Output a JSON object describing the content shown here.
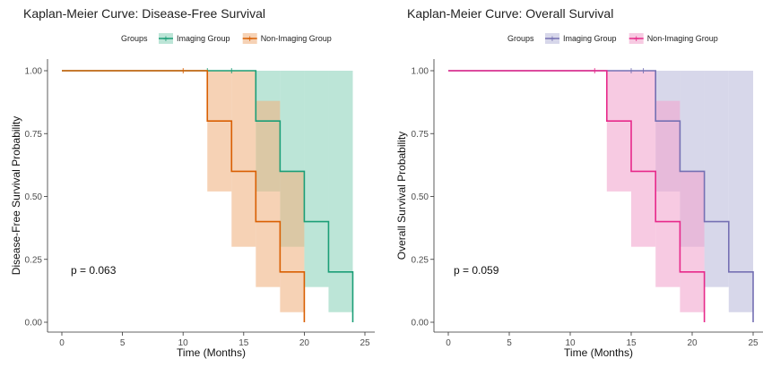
{
  "chart_data": [
    {
      "type": "line",
      "subtype": "kaplan-meier step",
      "title": "Kaplan-Meier Curve: Disease-Free Survival",
      "xlabel": "Time (Months)",
      "ylabel": "Disease-Free Survival Probability",
      "xlim": [
        0,
        25
      ],
      "ylim": [
        0,
        1
      ],
      "xticks": [
        0,
        5,
        10,
        15,
        20,
        25
      ],
      "yticks": [
        "0.00",
        "0.25",
        "0.50",
        "0.75",
        "1.00"
      ],
      "grid": false,
      "legend_title": "Groups",
      "legend_position": "top",
      "annotation": "p = 0.063",
      "series": [
        {
          "name": "Imaging Group",
          "color": "#1b9e77",
          "fill": "#8fd3bc",
          "steps": [
            [
              0,
              1.0
            ],
            [
              16,
              0.8
            ],
            [
              18,
              0.6
            ],
            [
              20,
              0.4
            ],
            [
              22,
              0.2
            ],
            [
              24,
              0.0
            ]
          ],
          "end": 24,
          "ci": [
            [
              0,
              1.0,
              1.0
            ],
            [
              16,
              1.0,
              0.52
            ],
            [
              18,
              1.0,
              0.3
            ],
            [
              20,
              1.0,
              0.14
            ],
            [
              22,
              1.0,
              0.04
            ]
          ],
          "censor": [
            12,
            14
          ]
        },
        {
          "name": "Non-Imaging Group",
          "color": "#d95f02",
          "fill": "#f0b483",
          "steps": [
            [
              0,
              1.0
            ],
            [
              12,
              0.8
            ],
            [
              14,
              0.6
            ],
            [
              16,
              0.4
            ],
            [
              18,
              0.2
            ],
            [
              20,
              0.0
            ]
          ],
          "end": 20,
          "ci": [
            [
              0,
              1.0,
              1.0
            ],
            [
              12,
              1.0,
              0.52
            ],
            [
              14,
              1.0,
              0.3
            ],
            [
              16,
              0.88,
              0.14
            ],
            [
              18,
              0.6,
              0.04
            ]
          ],
          "censor": [
            10
          ]
        }
      ]
    },
    {
      "type": "line",
      "subtype": "kaplan-meier step",
      "title": "Kaplan-Meier Curve: Overall Survival",
      "xlabel": "Time (Months)",
      "ylabel": "Overall Survival Probability",
      "xlim": [
        0,
        25
      ],
      "ylim": [
        0,
        1
      ],
      "xticks": [
        0,
        5,
        10,
        15,
        20,
        25
      ],
      "yticks": [
        "0.00",
        "0.25",
        "0.50",
        "0.75",
        "1.00"
      ],
      "grid": false,
      "legend_title": "Groups",
      "legend_position": "top",
      "annotation": "p = 0.059",
      "series": [
        {
          "name": "Imaging Group",
          "color": "#7570b3",
          "fill": "#bcbcdc",
          "steps": [
            [
              0,
              1.0
            ],
            [
              17,
              0.8
            ],
            [
              19,
              0.6
            ],
            [
              21,
              0.4
            ],
            [
              23,
              0.2
            ],
            [
              25,
              0.0
            ]
          ],
          "end": 25,
          "ci": [
            [
              0,
              1.0,
              1.0
            ],
            [
              17,
              1.0,
              0.52
            ],
            [
              19,
              1.0,
              0.3
            ],
            [
              21,
              1.0,
              0.14
            ],
            [
              23,
              1.0,
              0.04
            ]
          ],
          "censor": [
            15,
            16
          ]
        },
        {
          "name": "Non-Imaging Group",
          "color": "#e7298a",
          "fill": "#f2a6cf",
          "steps": [
            [
              0,
              1.0
            ],
            [
              13,
              0.8
            ],
            [
              15,
              0.6
            ],
            [
              17,
              0.4
            ],
            [
              19,
              0.2
            ],
            [
              21,
              0.0
            ]
          ],
          "end": 21,
          "ci": [
            [
              0,
              1.0,
              1.0
            ],
            [
              13,
              1.0,
              0.52
            ],
            [
              15,
              1.0,
              0.3
            ],
            [
              17,
              0.88,
              0.14
            ],
            [
              19,
              0.6,
              0.04
            ]
          ],
          "censor": [
            12
          ]
        }
      ]
    }
  ]
}
